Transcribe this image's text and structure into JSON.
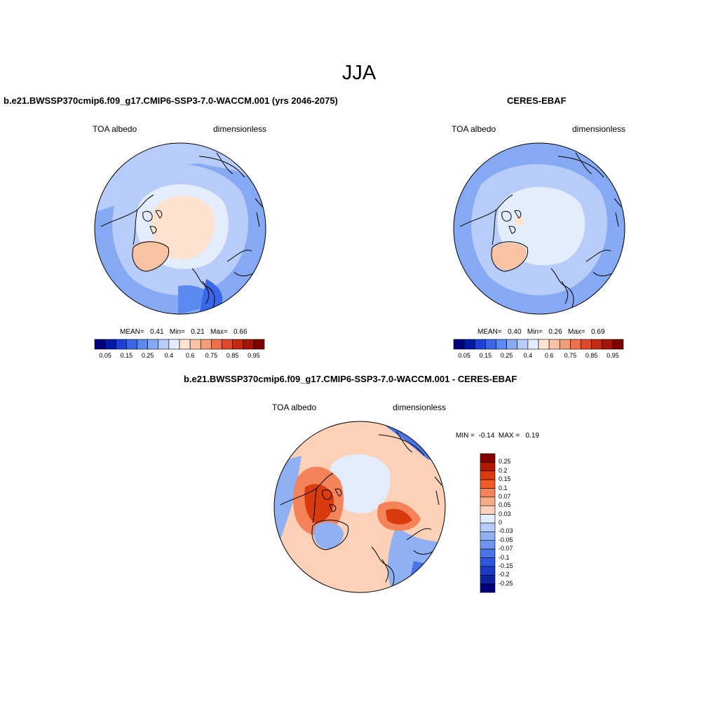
{
  "title": "JJA",
  "panels": [
    {
      "id": "model",
      "title": "b.e21.BWSSP370cmip6.f09_g17.CMIP6-SSP3-7.0-WACCM.001 (yrs 2046-2075)",
      "left_label": "TOA albedo",
      "right_label": "dimensionless",
      "stats": {
        "mean_label": "MEAN=",
        "mean": "0.41",
        "min_label": "Min=",
        "min": "0.21",
        "max_label": "Max=",
        "max": "0.66"
      }
    },
    {
      "id": "obs",
      "title": "CERES-EBAF",
      "left_label": "TOA albedo",
      "right_label": "dimensionless",
      "stats": {
        "mean_label": "MEAN=",
        "mean": "0.40",
        "min_label": "Min=",
        "min": "0.26",
        "max_label": "Max=",
        "max": "0.69"
      }
    },
    {
      "id": "diff",
      "title": "b.e21.BWSSP370cmip6.f09_g17.CMIP6-SSP3-7.0-WACCM.001 - CERES-EBAF",
      "left_label": "TOA albedo",
      "right_label": "dimensionless",
      "stats": {
        "min_label": "MIN =",
        "min": "-0.14",
        "max_label": "MAX =",
        "max": "0.19"
      }
    }
  ],
  "colorbar_abs": {
    "colors": [
      "#00007f",
      "#0019a8",
      "#1f3fd6",
      "#3a67e8",
      "#5b89ef",
      "#86a9f3",
      "#b7ccf8",
      "#e3edfb",
      "#fde2cf",
      "#f9c2a3",
      "#f49c77",
      "#ee704b",
      "#e04829",
      "#c42a12",
      "#a21507",
      "#7f0000"
    ],
    "tick_labels": [
      "0.05",
      "0.15",
      "0.25",
      "0.4",
      "0.6",
      "0.75",
      "0.85",
      "0.95"
    ]
  },
  "colorbar_diff": {
    "colors": [
      "#870000",
      "#b01a00",
      "#d93a0e",
      "#ee5b28",
      "#f5835a",
      "#f8a985",
      "#fcd1b8",
      "#e2ecfb",
      "#b5cbf8",
      "#8fb0f3",
      "#6e94ee",
      "#4b73e8",
      "#2d55de",
      "#1b3bc4",
      "#0d24a0",
      "#00007f"
    ],
    "tick_labels": [
      "0.25",
      "0.2",
      "0.15",
      "0.1",
      "0.07",
      "0.05",
      "0.03",
      "0",
      "-0.03",
      "-0.05",
      "-0.07",
      "-0.1",
      "-0.15",
      "-0.2",
      "-0.25"
    ]
  },
  "map_colors": {
    "ocean_light": "#b7ccf8",
    "ocean_mid": "#86a9f3",
    "ocean_dark": "#5b89ef",
    "ocean_deep": "#3a67e8",
    "ice_pale": "#e3edfb",
    "arctic_cap": "#fde2cf",
    "greenland": "#f9c2a3",
    "diff_neutral": "#fcd1b8",
    "diff_zero": "#e2ecfb",
    "diff_pos_mid": "#f5835a",
    "diff_pos_high": "#d93a0e",
    "diff_neg": "#8fb0f3",
    "diff_neg_strong": "#4b73e8"
  }
}
